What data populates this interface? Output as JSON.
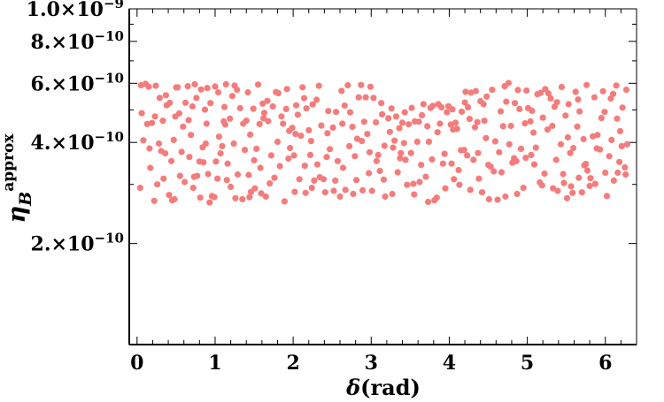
{
  "chart_data": {
    "type": "scatter",
    "title": "",
    "xlabel": "δ(rad)",
    "ylabel": {
      "symbol": "η",
      "subscript": "B",
      "superscript": "approx"
    },
    "xlim": [
      -0.1,
      6.4
    ],
    "ylim": [
      1e-10,
      1e-09
    ],
    "yscale": "log",
    "grid": false,
    "legend": "none",
    "marker_color": "#f47c7c",
    "x_ticks": [
      {
        "value": 0,
        "label": "0"
      },
      {
        "value": 1,
        "label": "1"
      },
      {
        "value": 2,
        "label": "2"
      },
      {
        "value": 3,
        "label": "3"
      },
      {
        "value": 4,
        "label": "4"
      },
      {
        "value": 5,
        "label": "5"
      },
      {
        "value": 6,
        "label": "6"
      }
    ],
    "y_ticks": [
      {
        "value": 1e-09,
        "mantissa": "1.0",
        "exponent": "−9"
      },
      {
        "value": 8e-10,
        "mantissa": "8.",
        "exponent": "−10"
      },
      {
        "value": 6e-10,
        "mantissa": "6.",
        "exponent": "−10"
      },
      {
        "value": 4e-10,
        "mantissa": "4.",
        "exponent": "−10"
      },
      {
        "value": 2e-10,
        "mantissa": "2.",
        "exponent": "−10"
      }
    ],
    "points": [
      [
        0.04,
        2.93e-10
      ],
      [
        0.05,
        5.92e-10
      ],
      [
        0.08,
        4.06e-10
      ],
      [
        0.13,
        4.54e-10
      ],
      [
        0.15,
        5.86e-10
      ],
      [
        0.17,
        3.36e-10
      ],
      [
        0.19,
        4.57e-10
      ],
      [
        0.22,
        2.68e-10
      ],
      [
        0.23,
        4.78e-10
      ],
      [
        0.24,
        5.9e-10
      ],
      [
        0.28,
        3.97e-10
      ],
      [
        0.29,
        5.43e-10
      ],
      [
        0.31,
        3.77e-10
      ],
      [
        0.34,
        3.12e-10
      ],
      [
        0.36,
        3.71e-10
      ],
      [
        0.37,
        5.53e-10
      ],
      [
        0.38,
        5.16e-10
      ],
      [
        0.42,
        5.25e-10
      ],
      [
        0.45,
        2.69e-10
      ],
      [
        0.47,
        4.07e-10
      ],
      [
        0.48,
        2.71e-10
      ],
      [
        0.49,
        4.78e-10
      ],
      [
        0.5,
        5.83e-10
      ],
      [
        0.52,
        5.84e-10
      ],
      [
        0.55,
        3.18e-10
      ],
      [
        0.57,
        3.75e-10
      ],
      [
        0.59,
        4.46e-10
      ],
      [
        0.62,
        5.25e-10
      ],
      [
        0.65,
        5.88e-10
      ],
      [
        0.67,
        3.62e-10
      ],
      [
        0.69,
        4.21e-10
      ],
      [
        0.71,
        5.12e-10
      ],
      [
        0.72,
        2.93e-10
      ],
      [
        0.73,
        3.16e-10
      ],
      [
        0.74,
        5.96e-10
      ],
      [
        0.77,
        3.18e-10
      ],
      [
        0.8,
        3.51e-10
      ],
      [
        0.81,
        2.74e-10
      ],
      [
        0.82,
        5.75e-10
      ],
      [
        0.85,
        3.49e-10
      ],
      [
        0.87,
        5.01e-10
      ],
      [
        0.88,
        3.97e-10
      ],
      [
        0.89,
        4.55e-10
      ],
      [
        0.9,
        5.81e-10
      ],
      [
        0.91,
        3.22e-10
      ],
      [
        0.93,
        2.65e-10
      ],
      [
        0.96,
        2.77e-10
      ],
      [
        0.99,
        2.75e-10
      ],
      [
        1,
        5.87e-10
      ],
      [
        1.01,
        3.51e-10
      ],
      [
        1.04,
        5.64e-10
      ],
      [
        1.05,
        4.16e-10
      ],
      [
        1.07,
        3.71e-10
      ],
      [
        1.09,
        3.9e-10
      ],
      [
        1.11,
        4.62e-10
      ],
      [
        1.12,
        5.1e-10
      ],
      [
        1.14,
        5.96e-10
      ],
      [
        1.15,
        3.09e-10
      ],
      [
        1.16,
        3.46e-10
      ],
      [
        1.19,
        4.71e-10
      ],
      [
        1.22,
        5.5e-10
      ],
      [
        1.24,
        3.97e-10
      ],
      [
        1.25,
        5.91e-10
      ],
      [
        1.26,
        2.73e-10
      ],
      [
        1.29,
        3.21e-10
      ],
      [
        1.32,
        5.06e-10
      ],
      [
        1.35,
        2.71e-10
      ],
      [
        1.38,
        3.8e-10
      ],
      [
        1.4,
        4.64e-10
      ],
      [
        1.43,
        3.2e-10
      ],
      [
        1.44,
        2.75e-10
      ],
      [
        1.45,
        4.22e-10
      ],
      [
        1.46,
        2.85e-10
      ],
      [
        1.49,
        5.04e-10
      ],
      [
        1.5,
        3.54e-10
      ],
      [
        1.51,
        2.92e-10
      ],
      [
        1.55,
        5.95e-10
      ],
      [
        1.57,
        4.54e-10
      ],
      [
        1.58,
        3.36e-10
      ],
      [
        1.59,
        2.82e-10
      ],
      [
        1.61,
        5.22e-10
      ],
      [
        1.62,
        4.72e-10
      ],
      [
        1.65,
        2.76e-10
      ],
      [
        1.67,
        5.32e-10
      ],
      [
        1.68,
        4.63e-10
      ],
      [
        1.7,
        3.02e-10
      ],
      [
        1.74,
        5.12e-10
      ],
      [
        1.76,
        3.14e-10
      ],
      [
        1.78,
        5.65e-10
      ],
      [
        1.81,
        5.61e-10
      ],
      [
        1.83,
        3.4e-10
      ],
      [
        1.85,
        4.78e-10
      ],
      [
        1.87,
        4.55e-10
      ],
      [
        1.89,
        2.67e-10
      ],
      [
        1.92,
        5.77e-10
      ],
      [
        1.94,
        3.58e-10
      ],
      [
        1.95,
        4.33e-10
      ],
      [
        1.96,
        3.85e-10
      ],
      [
        1.99,
        4.42e-10
      ],
      [
        2.02,
        2.85e-10
      ],
      [
        2.03,
        4.24e-10
      ],
      [
        2.04,
        5.16e-10
      ],
      [
        2.06,
        4.84e-10
      ],
      [
        2.08,
        3.11e-10
      ],
      [
        2.1,
        4.19e-10
      ],
      [
        2.14,
        5.42e-10
      ],
      [
        2.15,
        3.41e-10
      ],
      [
        2.16,
        2.83e-10
      ],
      [
        2.17,
        5.05e-10
      ],
      [
        2.2,
        4.35e-10
      ],
      [
        2.23,
        4.04e-10
      ],
      [
        2.24,
        2.93e-10
      ],
      [
        2.25,
        5.19e-10
      ],
      [
        2.27,
        3.08e-10
      ],
      [
        2.3,
        5.36e-10
      ],
      [
        2.31,
        3.44e-10
      ],
      [
        2.34,
        3.15e-10
      ],
      [
        2.36,
        4.49e-10
      ],
      [
        2.39,
        3.11e-10
      ],
      [
        2.41,
        2.84e-10
      ],
      [
        2.43,
        3.62e-10
      ],
      [
        2.45,
        4.96e-10
      ],
      [
        2.47,
        3.82e-10
      ],
      [
        2.51,
        4.43e-10
      ],
      [
        2.52,
        2.87e-10
      ],
      [
        2.55,
        4.93e-10
      ],
      [
        2.57,
        3.52e-10
      ],
      [
        2.6,
        2.76e-10
      ],
      [
        2.62,
        5.7e-10
      ],
      [
        2.63,
        4.55e-10
      ],
      [
        2.64,
        3.36e-10
      ],
      [
        2.67,
        2.89e-10
      ],
      [
        2.7,
        5.92e-10
      ],
      [
        2.72,
        3.9e-10
      ],
      [
        2.73,
        4.92e-10
      ],
      [
        2.76,
        4.45e-10
      ],
      [
        2.79,
        3.64e-10
      ],
      [
        2.81,
        3.09e-10
      ],
      [
        2.82,
        4.1e-10
      ],
      [
        2.84,
        5.45e-10
      ],
      [
        2.87,
        5.93e-10
      ],
      [
        2.89,
        2.88e-10
      ],
      [
        2.91,
        4.61e-10
      ],
      [
        2.93,
        5.45e-10
      ],
      [
        2.95,
        4.24e-10
      ],
      [
        2.98,
        3.74e-10
      ],
      [
        2.99,
        5.86e-10
      ],
      [
        3.01,
        2.87e-10
      ],
      [
        3.03,
        5.43e-10
      ],
      [
        3.07,
        3.52e-10
      ],
      [
        3.09,
        3.67e-10
      ],
      [
        3.11,
        3.29e-10
      ],
      [
        3.13,
        5.24e-10
      ],
      [
        3.14,
        4.85e-10
      ],
      [
        3.17,
        3.91e-10
      ],
      [
        3.18,
        2.76e-10
      ],
      [
        3.22,
        4.72e-10
      ],
      [
        3.24,
        4.3e-10
      ],
      [
        3.26,
        5.05e-10
      ],
      [
        3.27,
        2.81e-10
      ],
      [
        3.28,
        3.86e-10
      ],
      [
        3.3,
        4.05e-10
      ],
      [
        3.32,
        4.78e-10
      ],
      [
        3.36,
        4.41e-10
      ],
      [
        3.37,
        3.59e-10
      ],
      [
        3.38,
        3.72e-10
      ],
      [
        3.4,
        4.58e-10
      ],
      [
        3.43,
        4.92e-10
      ],
      [
        3.44,
        3.55e-10
      ],
      [
        3.46,
        2.99e-10
      ],
      [
        3.48,
        4.53e-10
      ],
      [
        3.51,
        3.72e-10
      ],
      [
        3.54,
        3.01e-10
      ],
      [
        3.55,
        2.8e-10
      ],
      [
        3.56,
        4.62e-10
      ],
      [
        3.59,
        4.02e-10
      ],
      [
        3.61,
        4.61e-10
      ],
      [
        3.62,
        3.05e-10
      ],
      [
        3.65,
        4.82e-10
      ],
      [
        3.67,
        5.2e-10
      ],
      [
        3.7,
        3.16e-10
      ],
      [
        3.72,
        4.47e-10
      ],
      [
        3.73,
        2.66e-10
      ],
      [
        3.76,
        5.07e-10
      ],
      [
        3.78,
        3.56e-10
      ],
      [
        3.79,
        5.14e-10
      ],
      [
        3.81,
        2.69e-10
      ],
      [
        3.84,
        2.74e-10
      ],
      [
        3.86,
        5.2e-10
      ],
      [
        3.88,
        4.55e-10
      ],
      [
        3.9,
        5.09e-10
      ],
      [
        3.92,
        3.46e-10
      ],
      [
        3.95,
        2.92e-10
      ],
      [
        3.97,
        4.92e-10
      ],
      [
        3.99,
        5.13e-10
      ],
      [
        4.02,
        4.52e-10
      ],
      [
        4.03,
        3.46e-10
      ],
      [
        4.05,
        4.37e-10
      ],
      [
        4.06,
        3.11e-10
      ],
      [
        4.08,
        4.58e-10
      ],
      [
        4.1,
        4.39e-10
      ],
      [
        4.12,
        3.31e-10
      ],
      [
        4.13,
        2.99e-10
      ],
      [
        4.16,
        4.94e-10
      ],
      [
        4.19,
        3.8e-10
      ],
      [
        4.2,
        5.26e-10
      ],
      [
        4.21,
        5.66e-10
      ],
      [
        4.23,
        3.66e-10
      ],
      [
        4.24,
        5.09e-10
      ],
      [
        4.26,
        4.7e-10
      ],
      [
        4.28,
        5.63e-10
      ],
      [
        4.31,
        3.55e-10
      ],
      [
        4.33,
        4.44e-10
      ],
      [
        4.34,
        5.69e-10
      ],
      [
        4.36,
        4.6e-10
      ],
      [
        4.38,
        3.12e-10
      ],
      [
        4.4,
        5.31e-10
      ],
      [
        4.42,
        2.84e-10
      ],
      [
        4.44,
        5.2e-10
      ],
      [
        4.45,
        4.64e-10
      ],
      [
        4.48,
        5.48e-10
      ],
      [
        4.5,
        3.43e-10
      ],
      [
        4.51,
        2.71e-10
      ],
      [
        4.53,
        3.39e-10
      ],
      [
        4.57,
        3.28e-10
      ],
      [
        4.59,
        4.03e-10
      ],
      [
        4.62,
        2.7e-10
      ],
      [
        4.64,
        3.74e-10
      ],
      [
        4.67,
        3.26e-10
      ],
      [
        4.69,
        4.47e-10
      ],
      [
        4.71,
        5.88e-10
      ],
      [
        4.72,
        2.76e-10
      ],
      [
        4.73,
        5.29e-10
      ],
      [
        4.76,
        6.01e-10
      ],
      [
        4.79,
        4.48e-10
      ],
      [
        4.81,
        3.48e-10
      ],
      [
        4.83,
        3.59e-10
      ],
      [
        4.84,
        5.24e-10
      ],
      [
        4.86,
        3.52e-10
      ],
      [
        4.88,
        5.73e-10
      ],
      [
        4.9,
        5.03e-10
      ],
      [
        4.92,
        3.83e-10
      ],
      [
        4.95,
        2.93e-10
      ],
      [
        4.98,
        3.6e-10
      ],
      [
        4.99,
        5.71e-10
      ],
      [
        5.01,
        5.06e-10
      ],
      [
        5.04,
        4.62e-10
      ],
      [
        5.05,
        3.67e-10
      ],
      [
        5.06,
        4.97e-10
      ],
      [
        5.08,
        4.28e-10
      ],
      [
        5.09,
        3.44e-10
      ],
      [
        5.13,
        5.57e-10
      ],
      [
        5.16,
        3.04e-10
      ],
      [
        5.17,
        5.62e-10
      ],
      [
        5.19,
        2.98e-10
      ],
      [
        5.22,
        3.23e-10
      ],
      [
        5.23,
        5.77e-10
      ],
      [
        5.26,
        4.37e-10
      ],
      [
        5.27,
        5.6e-10
      ],
      [
        5.3,
        5.41e-10
      ],
      [
        5.32,
        4.48e-10
      ],
      [
        5.35,
        5.11e-10
      ],
      [
        5.37,
        3.55e-10
      ],
      [
        5.38,
        5.27e-10
      ],
      [
        5.39,
        2.87e-10
      ],
      [
        5.43,
        3.95e-10
      ],
      [
        5.46,
        3.22e-10
      ],
      [
        5.47,
        3.03e-10
      ],
      [
        5.49,
        4.81e-10
      ],
      [
        5.51,
        2.73e-10
      ],
      [
        5.52,
        4.14e-10
      ],
      [
        5.53,
        5.2e-10
      ],
      [
        5.56,
        2.96e-10
      ],
      [
        5.58,
        2.83e-10
      ],
      [
        5.59,
        3.85e-10
      ],
      [
        5.62,
        5.66e-10
      ],
      [
        5.65,
        5.37e-10
      ],
      [
        5.66,
        3.14e-10
      ],
      [
        5.67,
        4.95e-10
      ],
      [
        5.7,
        2.84e-10
      ],
      [
        5.72,
        4.09e-10
      ],
      [
        5.73,
        3.42e-10
      ],
      [
        5.75,
        3.45e-10
      ],
      [
        5.77,
        3.3e-10
      ],
      [
        5.8,
        2.97e-10
      ],
      [
        5.81,
        3.13e-10
      ],
      [
        5.84,
        4.17e-10
      ],
      [
        5.86,
        5.45e-10
      ],
      [
        5.89,
        3.84e-10
      ],
      [
        5.9,
        4.21e-10
      ],
      [
        5.93,
        3.81e-10
      ],
      [
        5.95,
        4.73e-10
      ],
      [
        5.97,
        5.68e-10
      ],
      [
        6,
        3.25e-10
      ],
      [
        6.02,
        2.77e-10
      ],
      [
        6.05,
        3.64e-10
      ],
      [
        6.08,
        4.07e-10
      ],
      [
        6.1,
        5.58e-10
      ],
      [
        6.11,
        3.08e-10
      ],
      [
        6.14,
        5.91e-10
      ],
      [
        6.15,
        4.71e-10
      ],
      [
        6.16,
        3.25e-10
      ],
      [
        6.19,
        4.32e-10
      ],
      [
        6.21,
        3.9e-10
      ],
      [
        6.22,
        5.08e-10
      ],
      [
        6.25,
        3.37e-10
      ],
      [
        6.26,
        3.21e-10
      ],
      [
        6.28,
        3.95e-10
      ],
      [
        0.06,
        4.89e-10
      ],
      [
        0.11,
        5.98e-10
      ],
      [
        0.16,
        3.84e-10
      ],
      [
        0.26,
        3e-10
      ],
      [
        0.33,
        4.64e-10
      ],
      [
        0.41,
        2.79e-10
      ],
      [
        0.44,
        3.52e-10
      ],
      [
        0.54,
        4.88e-10
      ],
      [
        0.61,
        3.05e-10
      ],
      [
        0.66,
        4.66e-10
      ],
      [
        0.76,
        5.43e-10
      ],
      [
        0.84,
        3.87e-10
      ],
      [
        0.94,
        5.24e-10
      ],
      [
        1.03,
        3.12e-10
      ],
      [
        1.13,
        4.52e-10
      ],
      [
        1.2,
        2.95e-10
      ],
      [
        1.28,
        5.74e-10
      ],
      [
        1.36,
        4.55e-10
      ],
      [
        1.42,
        5.64e-10
      ],
      [
        1.53,
        3.83e-10
      ],
      [
        1.63,
        4.9e-10
      ],
      [
        1.72,
        3.66e-10
      ],
      [
        1.8,
        4.02e-10
      ],
      [
        1.91,
        5.03e-10
      ],
      [
        2.01,
        3.66e-10
      ],
      [
        2.12,
        5.84e-10
      ],
      [
        2.22,
        3.67e-10
      ],
      [
        2.33,
        5.9e-10
      ],
      [
        2.44,
        4.26e-10
      ],
      [
        2.54,
        3.08e-10
      ],
      [
        2.66,
        5.15e-10
      ],
      [
        2.77,
        2.81e-10
      ],
      [
        2.88,
        4.04e-10
      ],
      [
        2.97,
        3.24e-10
      ],
      [
        3.06,
        4.59e-10
      ],
      [
        3.16,
        3.1e-10
      ],
      [
        3.34,
        3.26e-10
      ],
      [
        3.42,
        3.98e-10
      ],
      [
        3.52,
        5.07e-10
      ],
      [
        3.64,
        3.43e-10
      ],
      [
        3.74,
        4.02e-10
      ],
      [
        3.85,
        4.29e-10
      ],
      [
        3.94,
        3.7e-10
      ],
      [
        4.04,
        5.02e-10
      ],
      [
        4.15,
        3.79e-10
      ],
      [
        4.27,
        2.89e-10
      ],
      [
        4.37,
        3.72e-10
      ],
      [
        4.47,
        4.12e-10
      ],
      [
        4.55,
        5.74e-10
      ],
      [
        4.66,
        4.95e-10
      ],
      [
        4.77,
        3.95e-10
      ],
      [
        4.87,
        2.81e-10
      ],
      [
        4.97,
        4.56e-10
      ],
      [
        5.11,
        3.86e-10
      ],
      [
        5.2,
        4.74e-10
      ],
      [
        5.33,
        2.92e-10
      ],
      [
        5.44,
        5.85e-10
      ],
      [
        5.55,
        3.72e-10
      ],
      [
        5.64,
        4.46e-10
      ],
      [
        5.76,
        5.93e-10
      ],
      [
        5.87,
        3.01e-10
      ],
      [
        5.99,
        4.93e-10
      ],
      [
        6.07,
        5.41e-10
      ],
      [
        6.18,
        3.5e-10
      ],
      [
        6.27,
        5.74e-10
      ]
    ]
  }
}
